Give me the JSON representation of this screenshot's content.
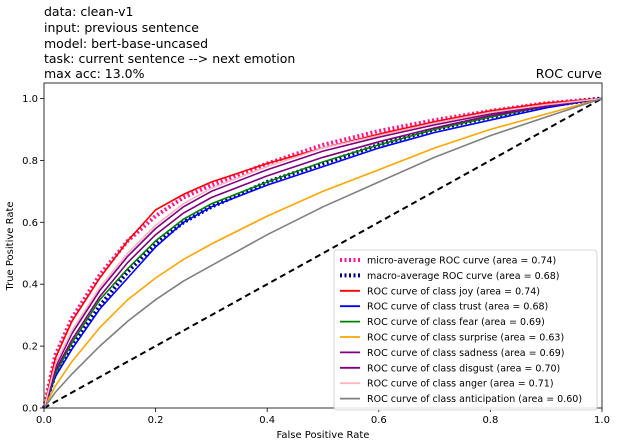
{
  "header": {
    "lines": [
      "data: clean-v1",
      "input: previous sentence",
      "model: bert-base-uncased",
      "task: current sentence --> next emotion",
      "max acc: 13.0%"
    ]
  },
  "chart_data": {
    "type": "line",
    "title": "ROC curve",
    "xlabel": "False Positive Rate",
    "ylabel": "True Positive Rate",
    "xlim": [
      0.0,
      1.0
    ],
    "ylim": [
      0.0,
      1.05
    ],
    "xticks": [
      "0.0",
      "0.2",
      "0.4",
      "0.6",
      "0.8",
      "1.0"
    ],
    "yticks": [
      "0.0",
      "0.2",
      "0.4",
      "0.6",
      "0.8",
      "1.0"
    ],
    "grid": false,
    "legend_position": "lower-right",
    "series": [
      {
        "name": "micro-average ROC curve (area = 0.74)",
        "color": "#ff1493",
        "style": "dotted",
        "x": [
          0,
          0.02,
          0.05,
          0.1,
          0.15,
          0.2,
          0.25,
          0.3,
          0.4,
          0.5,
          0.6,
          0.7,
          0.8,
          0.9,
          1.0
        ],
        "y": [
          0,
          0.17,
          0.29,
          0.43,
          0.54,
          0.62,
          0.68,
          0.72,
          0.79,
          0.85,
          0.895,
          0.93,
          0.96,
          0.985,
          1.0
        ]
      },
      {
        "name": "macro-average ROC curve (area = 0.68)",
        "color": "#00008b",
        "style": "dotted",
        "x": [
          0,
          0.02,
          0.05,
          0.1,
          0.15,
          0.2,
          0.25,
          0.3,
          0.4,
          0.5,
          0.6,
          0.7,
          0.8,
          0.9,
          1.0
        ],
        "y": [
          0,
          0.11,
          0.2,
          0.33,
          0.44,
          0.53,
          0.6,
          0.65,
          0.73,
          0.79,
          0.85,
          0.9,
          0.94,
          0.975,
          1.0
        ]
      },
      {
        "name": "ROC curve of class joy (area = 0.74)",
        "color": "#ff0000",
        "style": "solid",
        "x": [
          0,
          0.02,
          0.05,
          0.1,
          0.15,
          0.2,
          0.25,
          0.3,
          0.4,
          0.5,
          0.6,
          0.7,
          0.8,
          0.9,
          1.0
        ],
        "y": [
          0,
          0.16,
          0.28,
          0.42,
          0.54,
          0.64,
          0.69,
          0.73,
          0.79,
          0.84,
          0.885,
          0.925,
          0.96,
          0.985,
          1.0
        ]
      },
      {
        "name": "ROC curve of class trust (area = 0.68)",
        "color": "#0000ff",
        "style": "solid",
        "x": [
          0,
          0.02,
          0.05,
          0.1,
          0.15,
          0.2,
          0.25,
          0.3,
          0.4,
          0.5,
          0.6,
          0.7,
          0.8,
          0.9,
          1.0
        ],
        "y": [
          0,
          0.1,
          0.19,
          0.32,
          0.42,
          0.52,
          0.6,
          0.65,
          0.72,
          0.78,
          0.84,
          0.89,
          0.93,
          0.97,
          1.0
        ]
      },
      {
        "name": "ROC curve of class fear (area = 0.69)",
        "color": "#008000",
        "style": "solid",
        "x": [
          0,
          0.02,
          0.05,
          0.1,
          0.15,
          0.2,
          0.25,
          0.3,
          0.4,
          0.5,
          0.6,
          0.7,
          0.8,
          0.9,
          1.0
        ],
        "y": [
          0,
          0.11,
          0.21,
          0.35,
          0.45,
          0.54,
          0.61,
          0.66,
          0.73,
          0.795,
          0.85,
          0.9,
          0.94,
          0.975,
          1.0
        ]
      },
      {
        "name": "ROC curve of class surprise (area = 0.63)",
        "color": "#ffa500",
        "style": "solid",
        "x": [
          0,
          0.02,
          0.05,
          0.1,
          0.15,
          0.2,
          0.25,
          0.3,
          0.4,
          0.5,
          0.6,
          0.7,
          0.8,
          0.9,
          1.0
        ],
        "y": [
          0,
          0.07,
          0.15,
          0.26,
          0.35,
          0.42,
          0.48,
          0.53,
          0.62,
          0.7,
          0.77,
          0.84,
          0.9,
          0.95,
          1.0
        ]
      },
      {
        "name": "ROC curve of class sadness (area = 0.69)",
        "color": "#800080",
        "style": "solid",
        "x": [
          0,
          0.02,
          0.05,
          0.1,
          0.15,
          0.2,
          0.25,
          0.3,
          0.4,
          0.5,
          0.6,
          0.7,
          0.8,
          0.9,
          1.0
        ],
        "y": [
          0,
          0.12,
          0.22,
          0.36,
          0.47,
          0.56,
          0.63,
          0.68,
          0.75,
          0.81,
          0.86,
          0.905,
          0.945,
          0.975,
          1.0
        ]
      },
      {
        "name": "ROC curve of class disgust (area = 0.70)",
        "color": "#800080",
        "style": "solid",
        "x": [
          0,
          0.02,
          0.05,
          0.1,
          0.15,
          0.2,
          0.25,
          0.3,
          0.4,
          0.5,
          0.6,
          0.7,
          0.8,
          0.9,
          1.0
        ],
        "y": [
          0,
          0.13,
          0.24,
          0.38,
          0.49,
          0.58,
          0.65,
          0.7,
          0.77,
          0.83,
          0.875,
          0.915,
          0.95,
          0.98,
          1.0
        ]
      },
      {
        "name": "ROC curve of class anger (area = 0.71)",
        "color": "#ffb6c1",
        "style": "solid",
        "x": [
          0,
          0.02,
          0.05,
          0.1,
          0.15,
          0.2,
          0.25,
          0.3,
          0.4,
          0.5,
          0.6,
          0.7,
          0.8,
          0.9,
          1.0
        ],
        "y": [
          0,
          0.14,
          0.25,
          0.39,
          0.5,
          0.59,
          0.66,
          0.71,
          0.78,
          0.84,
          0.88,
          0.92,
          0.955,
          0.98,
          1.0
        ]
      },
      {
        "name": "ROC curve of class anticipation (area = 0.60)",
        "color": "#808080",
        "style": "solid",
        "x": [
          0,
          0.02,
          0.05,
          0.1,
          0.15,
          0.2,
          0.25,
          0.3,
          0.4,
          0.5,
          0.6,
          0.7,
          0.8,
          0.9,
          1.0
        ],
        "y": [
          0,
          0.05,
          0.11,
          0.2,
          0.28,
          0.35,
          0.41,
          0.46,
          0.56,
          0.65,
          0.73,
          0.81,
          0.88,
          0.94,
          1.0
        ]
      }
    ]
  }
}
